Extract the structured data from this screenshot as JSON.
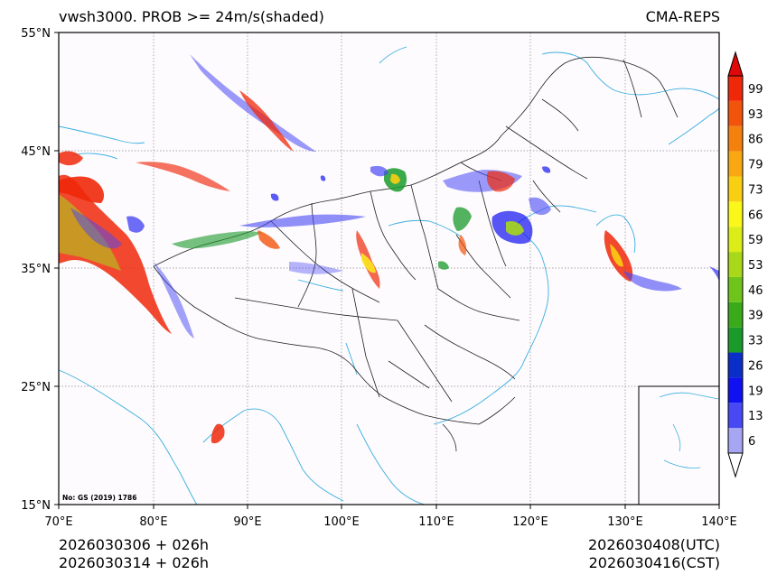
{
  "header": {
    "title": "vwsh3000. PROB >= 24m/s(shaded)",
    "source": "CMA-REPS"
  },
  "map": {
    "region": "China",
    "lon_range": [
      70,
      140
    ],
    "lat_range": [
      15,
      55
    ],
    "lon_ticks": [
      "70°E",
      "80°E",
      "90°E",
      "100°E",
      "110°E",
      "120°E",
      "130°E",
      "140°E"
    ],
    "lat_ticks": [
      "55°N",
      "45°N",
      "35°N",
      "25°N",
      "15°N"
    ],
    "approval_no": "No: GS (2019) 1786",
    "colors": {
      "land": "#fdfbfd",
      "coast": "#3aaee0",
      "border": "#222222",
      "grid": "#808080"
    }
  },
  "colorbar": {
    "labels": [
      "99",
      "93",
      "86",
      "79",
      "73",
      "66",
      "59",
      "53",
      "46",
      "39",
      "33",
      "26",
      "19",
      "13",
      "6"
    ],
    "colors": [
      "#a6a6f2",
      "#4848f5",
      "#1010f0",
      "#0a2fc8",
      "#1a9a2a",
      "#3aaa1a",
      "#6ec41a",
      "#a8d81a",
      "#dcec18",
      "#fbf71a",
      "#f8cf12",
      "#f8a812",
      "#f4800e",
      "#f2540c",
      "#f0280a"
    ],
    "top_color": "#e00808",
    "bottom_color": "#ffffff"
  },
  "footer": {
    "init_utc": "2026030306  +  026h",
    "init_cst": "2026030314  +  026h",
    "valid_utc": "2026030408(UTC)",
    "valid_cst": "2026030416(CST)"
  }
}
